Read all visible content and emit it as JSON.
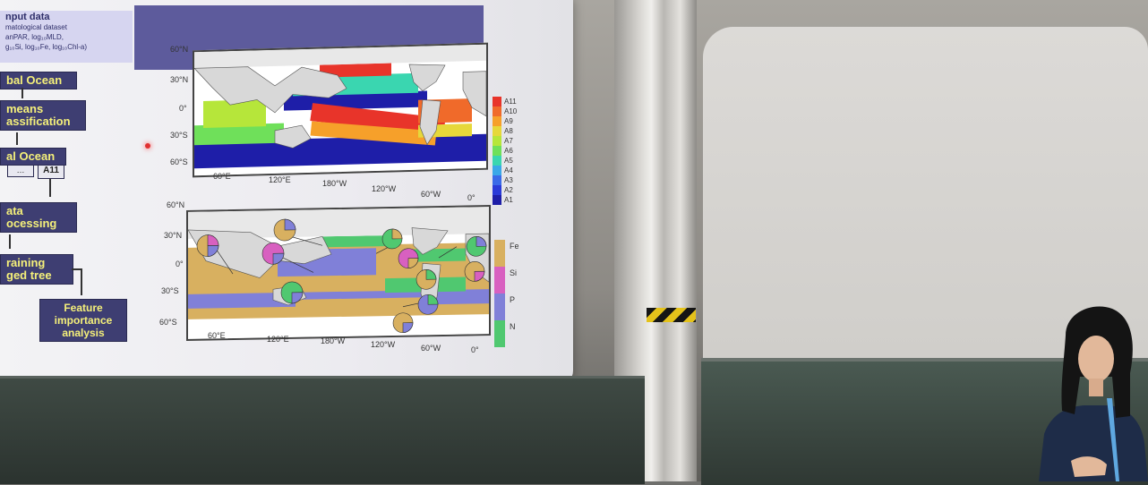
{
  "flowchart": {
    "input_title": "nput data",
    "input_lines": [
      "matological dataset",
      "anPAR, log₁₀MLD,",
      "g₁₀Si, log₁₀Fe, log₁₀Chl-a)"
    ],
    "box1": "bal Ocean",
    "box2_line1": "means",
    "box2_line2": "assification",
    "box3": "al Ocean",
    "dots": "…",
    "a11": "A11",
    "box4_line1": "ata",
    "box4_line2": "ocessing",
    "box5_line1": "raining",
    "box5_line2": "ged tree",
    "box6_line1": "Feature",
    "box6_line2": "importance",
    "box6_line3": "analysis"
  },
  "top_map": {
    "lat_labels": [
      "60°N",
      "30°N",
      "0°",
      "30°S",
      "60°S"
    ],
    "lon_labels": [
      "60°E",
      "120°E",
      "180°W",
      "120°W",
      "60°W",
      "0°"
    ],
    "legend": [
      "A11",
      "A10",
      "A9",
      "A8",
      "A7",
      "A6",
      "A5",
      "A4",
      "A3",
      "A2",
      "A1"
    ],
    "legend_colors": [
      "#e8342a",
      "#f06a2a",
      "#f6a02a",
      "#e6d83a",
      "#b6e63a",
      "#6fe05a",
      "#3ad6b0",
      "#3aa8e8",
      "#3a6ae8",
      "#2a3ad8",
      "#1e1ea8"
    ]
  },
  "bottom_map": {
    "lat_labels": [
      "60°N",
      "30°N",
      "0°",
      "30°S",
      "60°S"
    ],
    "lon_labels": [
      "60°E",
      "120°E",
      "180°W",
      "120°W",
      "60°W",
      "0°"
    ],
    "legend": [
      "Fe",
      "Si",
      "P",
      "N"
    ],
    "legend_colors": [
      "#d8b060",
      "#d860c0",
      "#8080d8",
      "#50c870"
    ]
  }
}
